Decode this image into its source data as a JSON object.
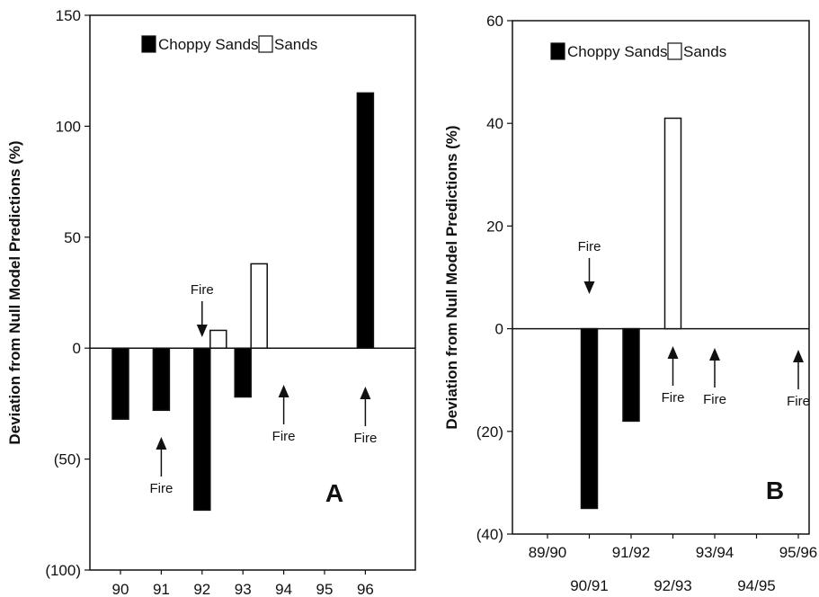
{
  "chart_data": [
    {
      "type": "bar",
      "panel_label": "A",
      "ylabel": "Deviation from Null Model Predictions (%)",
      "ylim": [
        -100,
        150
      ],
      "y_ticks": [
        150,
        100,
        50,
        0,
        -50,
        -100
      ],
      "y_tick_labels": [
        "150",
        "100",
        "50",
        "0",
        "(50)",
        "(100)"
      ],
      "categories": [
        "90",
        "91",
        "92",
        "93",
        "94",
        "95",
        "96"
      ],
      "legend": [
        "Choppy Sands",
        "Sands"
      ],
      "series": [
        {
          "name": "Choppy Sands",
          "color": "#000000",
          "values": [
            -32,
            -28,
            -73,
            -22,
            null,
            null,
            115
          ]
        },
        {
          "name": "Sands",
          "color": "#ffffff",
          "values": [
            null,
            null,
            8,
            38,
            null,
            null,
            null
          ]
        }
      ],
      "annotations": [
        {
          "text": "Fire",
          "category": "91",
          "direction": "up"
        },
        {
          "text": "Fire",
          "category": "92",
          "direction": "down"
        },
        {
          "text": "Fire",
          "category": "94",
          "direction": "up"
        },
        {
          "text": "Fire",
          "category": "96",
          "direction": "up"
        }
      ]
    },
    {
      "type": "bar",
      "panel_label": "B",
      "ylabel": "Deviation from Null Model Predictions (%)",
      "ylim": [
        -40,
        60
      ],
      "y_ticks": [
        60,
        40,
        20,
        0,
        -20,
        -40
      ],
      "y_tick_labels": [
        "60",
        "40",
        "20",
        "0",
        "(20)",
        "(40)"
      ],
      "categories": [
        "89/90",
        "90/91",
        "91/92",
        "92/93",
        "93/94",
        "94/95",
        "95/96"
      ],
      "legend": [
        "Choppy Sands",
        "Sands"
      ],
      "series": [
        {
          "name": "Choppy Sands",
          "color": "#000000",
          "values": [
            null,
            -35,
            -18,
            null,
            null,
            null,
            null
          ]
        },
        {
          "name": "Sands",
          "color": "#ffffff",
          "values": [
            null,
            null,
            null,
            41,
            null,
            null,
            null
          ]
        }
      ],
      "annotations": [
        {
          "text": "Fire",
          "category": "90/91",
          "direction": "down"
        },
        {
          "text": "Fire",
          "category": "92/93",
          "direction": "up"
        },
        {
          "text": "Fire",
          "category": "93/94",
          "direction": "up"
        },
        {
          "text": "Fire",
          "category": "95/96",
          "direction": "up"
        }
      ]
    }
  ]
}
